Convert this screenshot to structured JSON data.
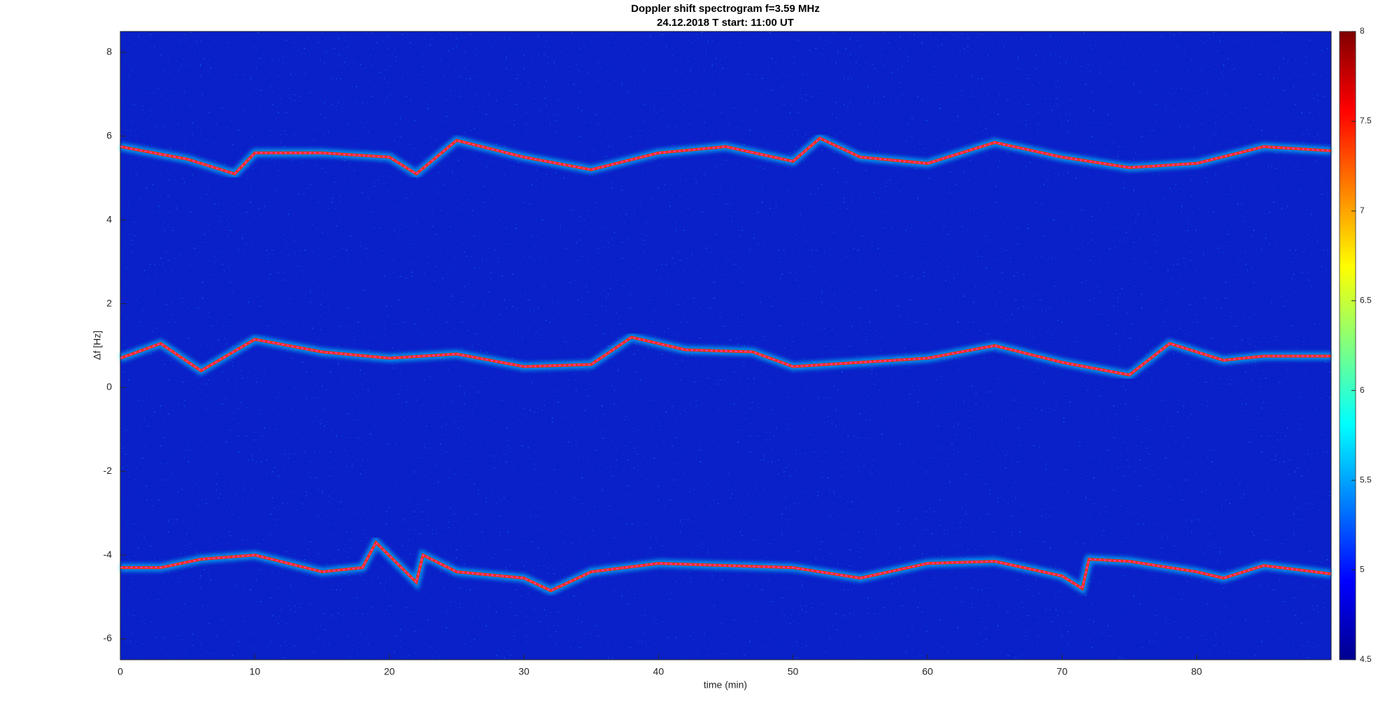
{
  "chart_data": {
    "type": "line",
    "title": "Doppler shift spectrogram f=3.59 MHz",
    "subtitle": "24.12.2018   T start: 11:00 UT",
    "x_label": "time (min)",
    "y_label": "Δf [Hz]",
    "xlim": [
      0,
      90
    ],
    "ylim": [
      -6.5,
      8.5
    ],
    "xticks": [
      0,
      10,
      20,
      30,
      40,
      50,
      60,
      70,
      80
    ],
    "yticks": [
      -6,
      -4,
      -2,
      0,
      2,
      4,
      6,
      8
    ],
    "colorbar": {
      "lim": [
        4.5,
        8
      ],
      "ticks": [
        4.5,
        5,
        5.5,
        6,
        6.5,
        7,
        7.5,
        8
      ]
    },
    "series": [
      {
        "color": "#ff2a00",
        "x": [
          0,
          5,
          8.5,
          10,
          15,
          20,
          22,
          25,
          30,
          35,
          40,
          45,
          50,
          52,
          55,
          60,
          65,
          70,
          75,
          80,
          85,
          90
        ],
        "values": [
          5.75,
          5.45,
          5.1,
          5.6,
          5.6,
          5.5,
          5.1,
          5.9,
          5.5,
          5.2,
          5.6,
          5.75,
          5.4,
          5.95,
          5.5,
          5.35,
          5.85,
          5.5,
          5.25,
          5.35,
          5.75,
          5.65
        ]
      },
      {
        "color": "#ff2a00",
        "x": [
          0,
          3,
          6,
          10,
          15,
          20,
          25,
          30,
          35,
          38,
          42,
          47,
          50,
          55,
          60,
          65,
          70,
          75,
          78,
          82,
          85,
          90
        ],
        "values": [
          0.7,
          1.05,
          0.4,
          1.15,
          0.85,
          0.7,
          0.8,
          0.5,
          0.55,
          1.2,
          0.9,
          0.85,
          0.5,
          0.6,
          0.7,
          1.0,
          0.6,
          0.3,
          1.05,
          0.65,
          0.75,
          0.75
        ]
      },
      {
        "color": "#ff2a00",
        "x": [
          0,
          3,
          6,
          10,
          15,
          18,
          19,
          22,
          22.5,
          25,
          30,
          32,
          35,
          40,
          45,
          50,
          55,
          60,
          65,
          70,
          71.5,
          72,
          75,
          80,
          82,
          85,
          90
        ],
        "values": [
          -4.3,
          -4.3,
          -4.1,
          -4.0,
          -4.4,
          -4.3,
          -3.7,
          -4.65,
          -4.0,
          -4.4,
          -4.55,
          -4.85,
          -4.4,
          -4.2,
          -4.25,
          -4.3,
          -4.55,
          -4.2,
          -4.15,
          -4.5,
          -4.8,
          -4.1,
          -4.15,
          -4.4,
          -4.55,
          -4.25,
          -4.45
        ]
      }
    ]
  }
}
